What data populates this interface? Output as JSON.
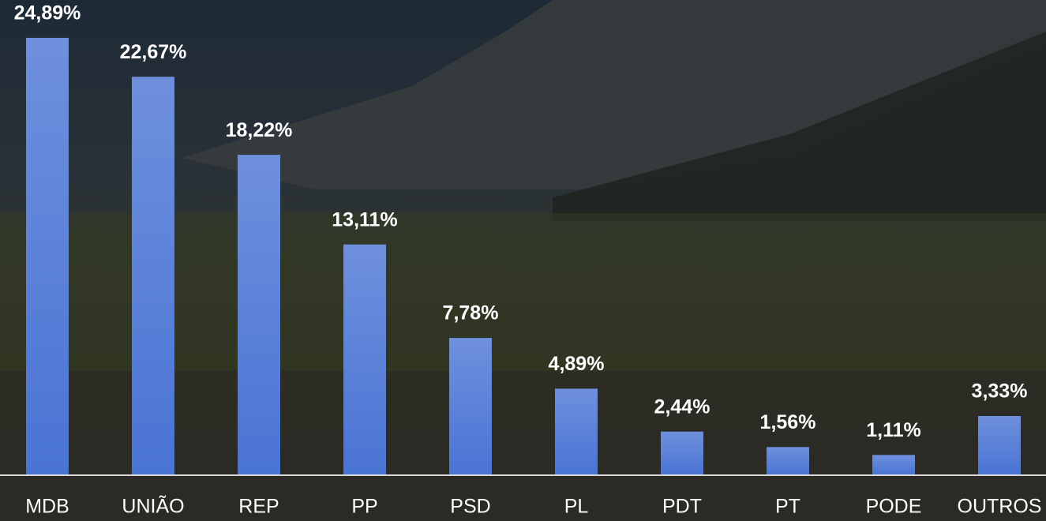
{
  "chart_data": {
    "type": "bar",
    "categories": [
      "MDB",
      "UNIÃO",
      "REP",
      "PP",
      "PSD",
      "PL",
      "PDT",
      "PT",
      "PODE",
      "OUTROS"
    ],
    "values": [
      24.89,
      22.67,
      18.22,
      13.11,
      7.78,
      4.89,
      2.44,
      1.56,
      1.11,
      3.33
    ],
    "value_labels": [
      "24,89%",
      "22,67%",
      "18,22%",
      "13,11%",
      "7,78%",
      "4,89%",
      "2,44%",
      "1,56%",
      "1,11%",
      "3,33%"
    ],
    "color": "#4a74d4",
    "ylim": [
      0,
      25
    ]
  }
}
